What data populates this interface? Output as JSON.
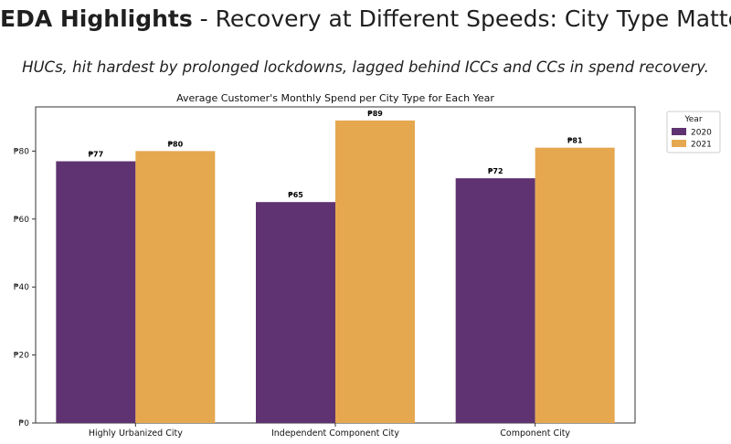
{
  "header": {
    "title_bold": "EDA Highlights",
    "title_rest": " - Recovery at Different Speeds: City Type Matters",
    "subtitle": "HUCs, hit hardest by prolonged lockdowns, lagged behind ICCs and CCs in spend recovery."
  },
  "chart_data": {
    "type": "bar",
    "title": "Average Customer's Monthly Spend per City Type for Each Year",
    "categories": [
      "Highly Urbanized City",
      "Independent Component City",
      "Component City"
    ],
    "series": [
      {
        "name": "2020",
        "values": [
          77,
          65,
          72
        ],
        "labels": [
          "₱77",
          "₱65",
          "₱72"
        ],
        "color": "#5f3371"
      },
      {
        "name": "2021",
        "values": [
          80,
          89,
          81
        ],
        "labels": [
          "₱80",
          "₱89",
          "₱81"
        ],
        "color": "#e5a84f"
      }
    ],
    "ylim": [
      0,
      93
    ],
    "yticks": [
      0,
      20,
      40,
      60,
      80
    ],
    "ytick_labels": [
      "₱0",
      "₱20",
      "₱40",
      "₱60",
      "₱80"
    ],
    "legend_title": "Year",
    "legend_position": "outside-top-right",
    "grid": false
  }
}
